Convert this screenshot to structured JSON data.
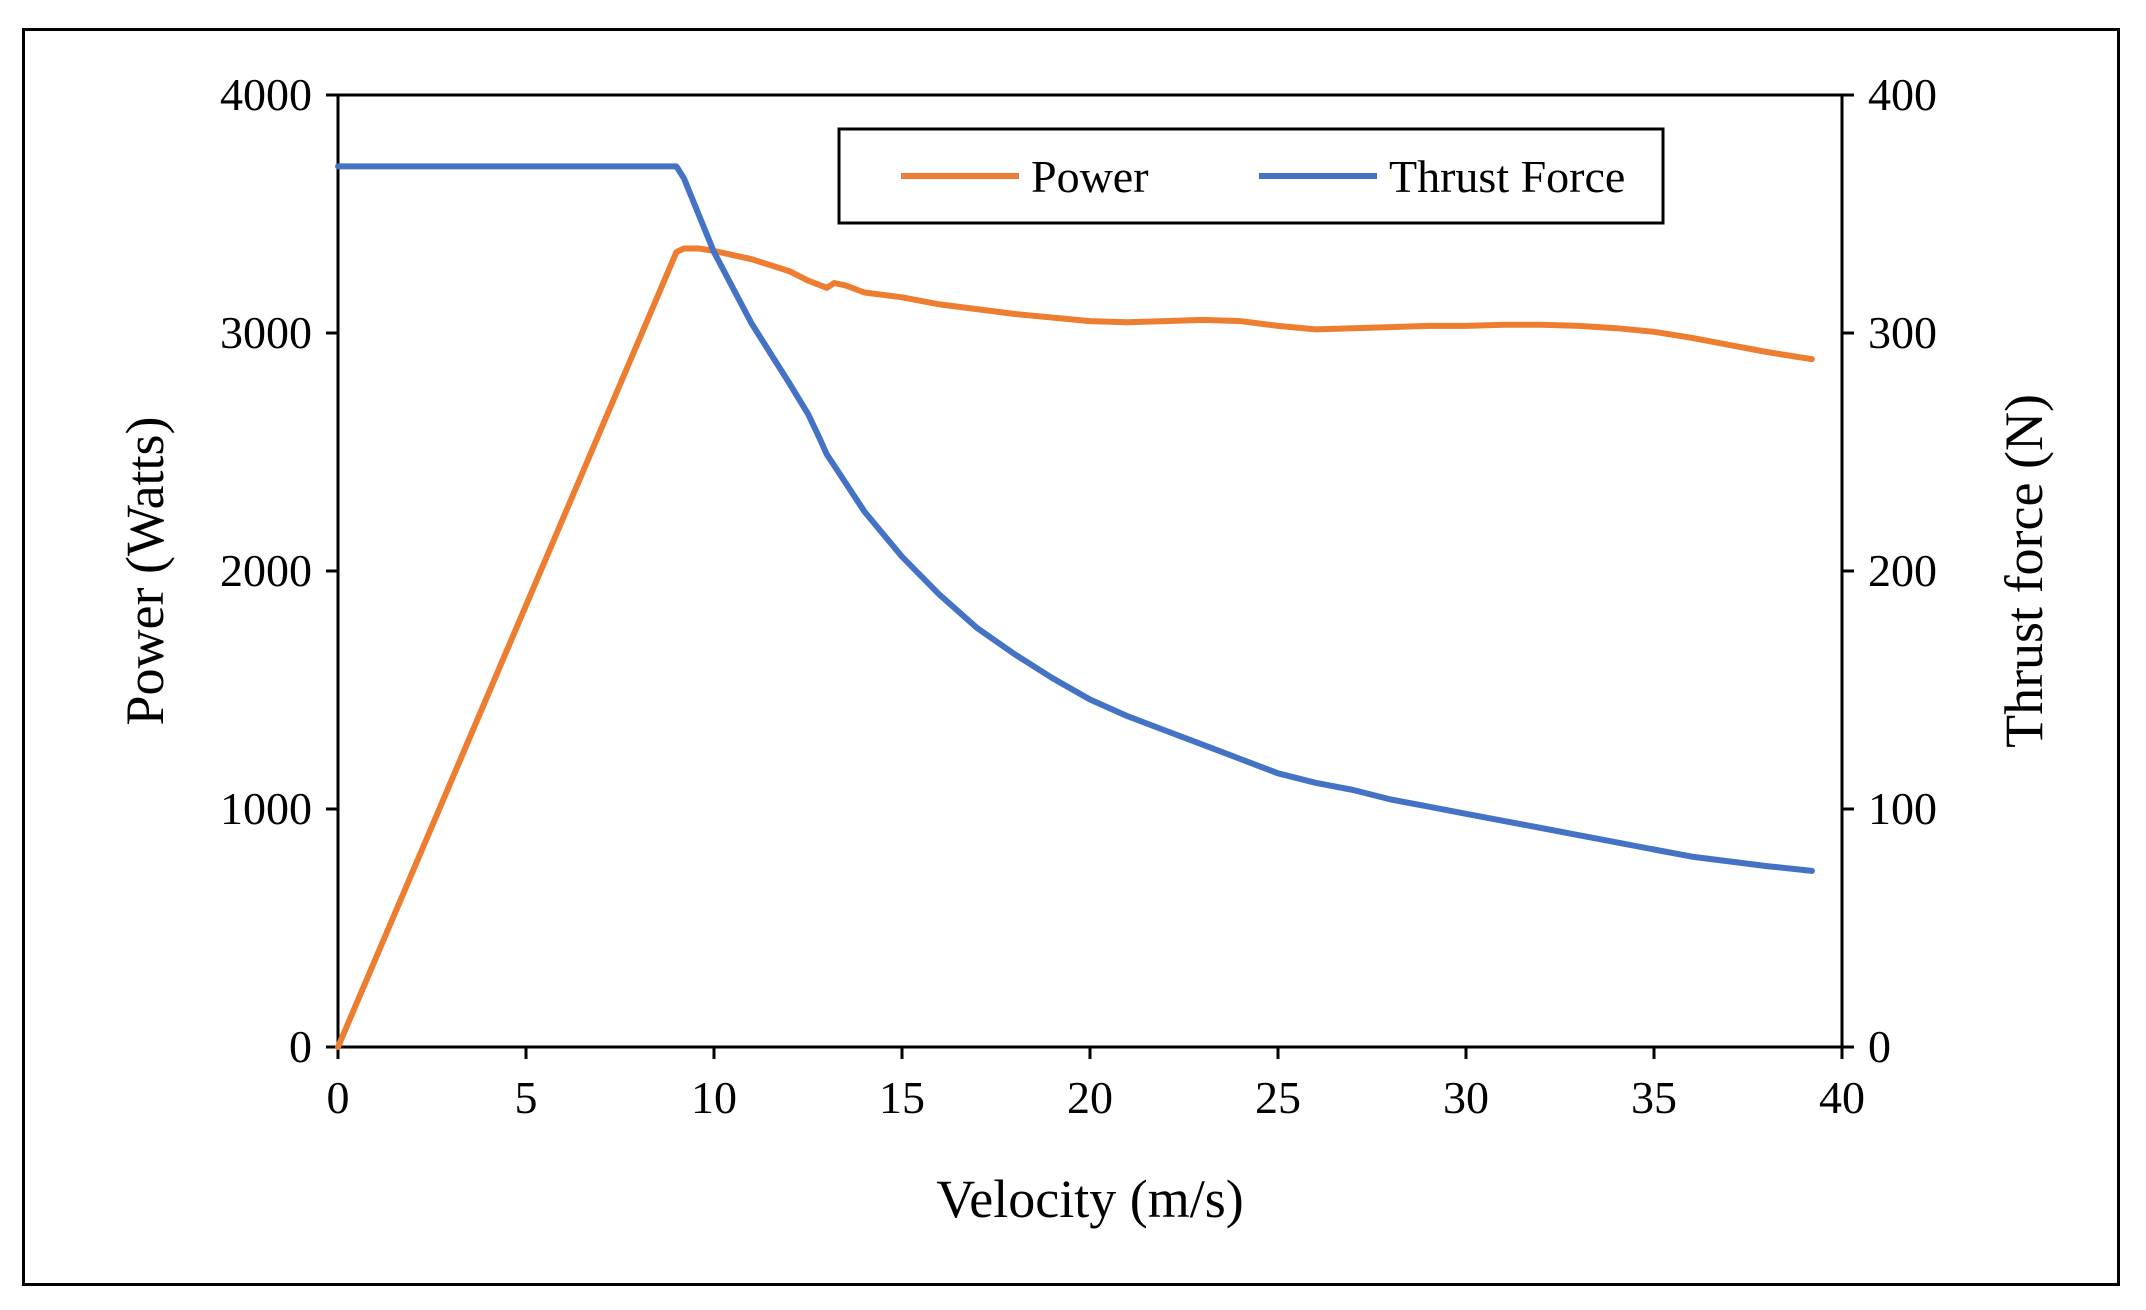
{
  "chart_data": {
    "type": "line",
    "title": "",
    "xlabel": "Velocity (m/s)",
    "ylabel": "Power (Watts)",
    "y2label": "Thrust force (N)",
    "xlim": [
      0,
      40
    ],
    "ylim": [
      0,
      4000
    ],
    "y2lim": [
      0,
      400
    ],
    "xticks": [
      "0",
      "5",
      "10",
      "15",
      "20",
      "25",
      "30",
      "35",
      "40"
    ],
    "yticks": [
      "0",
      "1000",
      "2000",
      "3000",
      "4000"
    ],
    "y2ticks": [
      "0",
      "100",
      "200",
      "300",
      "400"
    ],
    "grid": false,
    "legend": {
      "placement": "top-center"
    },
    "series": [
      {
        "name": "Power",
        "axis": "left",
        "color": "#ED7D31",
        "x": [
          0,
          9,
          9.2,
          9.6,
          10,
          11,
          12,
          12.5,
          13,
          13.2,
          13.5,
          14,
          15,
          16,
          18,
          20,
          21,
          22,
          23,
          24,
          25,
          26,
          27,
          28,
          29,
          30,
          31,
          32,
          33,
          34,
          35,
          36,
          37,
          38,
          39.2
        ],
        "y": [
          0,
          3340,
          3355,
          3355,
          3345,
          3310,
          3260,
          3220,
          3190,
          3210,
          3200,
          3170,
          3150,
          3120,
          3080,
          3050,
          3045,
          3050,
          3055,
          3050,
          3030,
          3015,
          3020,
          3025,
          3030,
          3030,
          3035,
          3035,
          3030,
          3020,
          3005,
          2980,
          2950,
          2920,
          2890
        ]
      },
      {
        "name": "Thrust Force",
        "axis": "right",
        "color": "#4472C4",
        "x": [
          0,
          9,
          9.2,
          10,
          11,
          12,
          12.5,
          12.8,
          13,
          13.5,
          14,
          15,
          16,
          17,
          18,
          19,
          20,
          21,
          22,
          23,
          24,
          25,
          26,
          27,
          28,
          29,
          30,
          31,
          32,
          33,
          34,
          35,
          36,
          37,
          38,
          39.2
        ],
        "y": [
          370,
          370,
          365,
          334,
          304,
          279,
          266,
          256,
          249,
          237,
          225,
          206,
          190,
          176,
          165,
          155,
          146,
          139,
          133,
          127,
          121,
          115,
          111,
          108,
          104,
          101,
          98,
          95,
          92,
          89,
          86,
          83,
          80,
          78,
          76,
          74
        ]
      }
    ]
  }
}
